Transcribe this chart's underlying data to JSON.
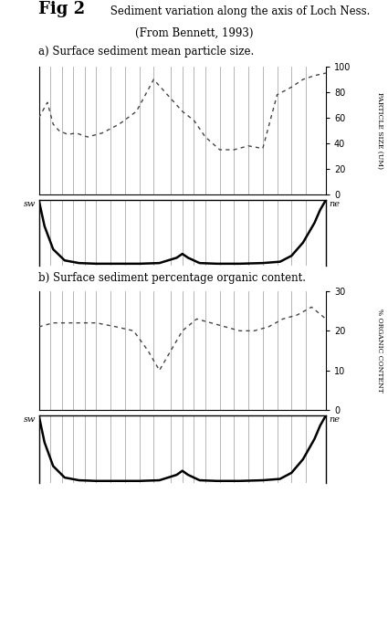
{
  "fig_title_bold": "Fig 2",
  "fig_title_rest": " Sediment variation along the axis of Loch Ness.",
  "fig_subtitle": "(From Bennett, 1993)",
  "panel_a_title": "a) Surface sediment mean particle size.",
  "panel_b_title": "b) Surface sediment percentage organic content.",
  "ylabel_a": "PARTICLE SIZE (UM)",
  "ylabel_b": "% ORGANIC CONTENT",
  "ylim_a": [
    0,
    100
  ],
  "ylim_b": [
    0,
    30
  ],
  "yticks_a": [
    0,
    20,
    40,
    60,
    80,
    100
  ],
  "yticks_b": [
    0,
    10,
    20,
    30
  ],
  "sw_label": "sw",
  "ne_label": "ne",
  "particle_size_x": [
    0.0,
    0.03,
    0.05,
    0.07,
    0.1,
    0.13,
    0.17,
    0.22,
    0.28,
    0.34,
    0.4,
    0.46,
    0.5,
    0.54,
    0.58,
    0.63,
    0.68,
    0.73,
    0.78,
    0.83,
    0.88,
    0.92,
    0.96,
    1.0
  ],
  "particle_size_y": [
    60,
    72,
    55,
    50,
    47,
    48,
    45,
    48,
    55,
    65,
    90,
    75,
    65,
    58,
    45,
    35,
    35,
    38,
    36,
    78,
    84,
    90,
    93,
    95
  ],
  "organic_x": [
    0.0,
    0.05,
    0.1,
    0.15,
    0.2,
    0.27,
    0.33,
    0.38,
    0.42,
    0.46,
    0.5,
    0.55,
    0.6,
    0.65,
    0.7,
    0.75,
    0.8,
    0.85,
    0.9,
    0.95,
    1.0
  ],
  "organic_y": [
    21,
    22,
    22,
    22,
    22,
    21,
    20,
    15,
    10,
    15,
    20,
    23,
    22,
    21,
    20,
    20,
    21,
    23,
    24,
    26,
    23
  ],
  "bathy_x": [
    0.0,
    0.02,
    0.05,
    0.09,
    0.14,
    0.2,
    0.28,
    0.35,
    0.42,
    0.48,
    0.5,
    0.52,
    0.56,
    0.62,
    0.7,
    0.78,
    0.84,
    0.88,
    0.92,
    0.96,
    0.98,
    1.0
  ],
  "bathy_y": [
    1.0,
    0.6,
    0.25,
    0.08,
    0.04,
    0.03,
    0.03,
    0.03,
    0.04,
    0.12,
    0.18,
    0.12,
    0.04,
    0.03,
    0.03,
    0.04,
    0.06,
    0.15,
    0.35,
    0.65,
    0.85,
    1.0
  ],
  "vline_positions": [
    0.04,
    0.08,
    0.12,
    0.16,
    0.2,
    0.25,
    0.3,
    0.35,
    0.4,
    0.46,
    0.5,
    0.54,
    0.58,
    0.63,
    0.68,
    0.73,
    0.78,
    0.83,
    0.88,
    0.93
  ],
  "bg_color": "#ffffff",
  "line_color": "#000000",
  "dashed_color": "#444444"
}
